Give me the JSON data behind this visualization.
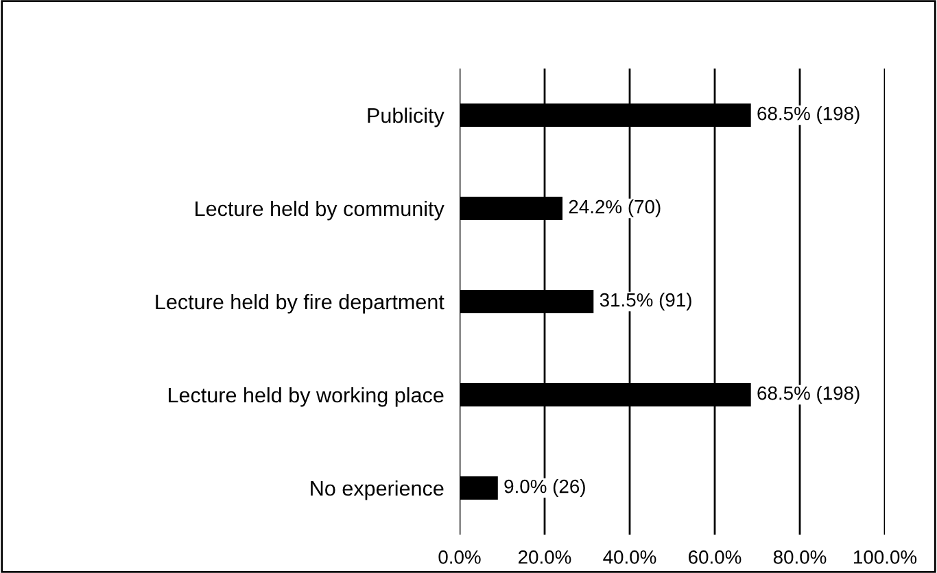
{
  "chart_data": {
    "type": "bar",
    "orientation": "horizontal",
    "categories": [
      "Publicity",
      "Lecture held by community",
      "Lecture held by fire department",
      "Lecture held by working place",
      "No experience"
    ],
    "values": [
      68.5,
      24.2,
      31.5,
      68.5,
      9.0
    ],
    "value_labels": [
      "68.5% (198)",
      "24.2% (70)",
      "31.5% (91)",
      "68.5% (198)",
      "9.0% (26)"
    ],
    "color": "#000000",
    "xlim": [
      0,
      100
    ],
    "xticks": [
      {
        "value": 0,
        "label": "0.0%"
      },
      {
        "value": 20,
        "label": "20.0%"
      },
      {
        "value": 40,
        "label": "40.0%"
      },
      {
        "value": 60,
        "label": "60.0%"
      },
      {
        "value": 80,
        "label": "80.0%"
      },
      {
        "value": 100,
        "label": "100.0%"
      }
    ],
    "grid": "x",
    "legend": false
  }
}
